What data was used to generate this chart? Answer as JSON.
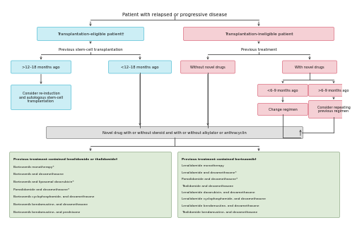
{
  "title": "Patient with relapsed or progressive disease",
  "bg_color": "#ffffff",
  "box_cyan_fill": "#cceef5",
  "box_cyan_edge": "#6bc8dc",
  "box_pink_fill": "#f5d0d5",
  "box_pink_edge": "#e08090",
  "box_green_fill": "#deebd8",
  "box_green_edge": "#a0b898",
  "box_gray_fill": "#e0e0e0",
  "box_gray_edge": "#909090",
  "arrow_color": "#444444",
  "text_color": "#111111",
  "title_text": "Patient with relapsed or progressive disease",
  "eligible_text": "Transplantation-eligible patient†",
  "ineligible_text": "Transplantation-ineligible patient",
  "prev_sct_text": "Previous stem-cell transplantation",
  "prev_tx_text": "Previous treatment",
  "gt12_text": ">12–18 months ago",
  "lt12_text": "<12–18 months ago",
  "without_novel_text": "Without novel drugs",
  "with_novel_text": "With novel drugs",
  "reinduction_text": "Consider re-induction\nand autologous stem-cell\ntransplantation",
  "lt6_text": "<6–9 months ago",
  "gt6_text": ">6–9 months ago",
  "change_text": "Change regimen",
  "repeat_text": "Consider repeating\nprevious regimen",
  "novel_text": "Novel drug with or without steroid and with or without alkylator or anthracyclin",
  "left_lines": [
    "Previous treatment contained lenalidomide or thalidomide†",
    "Bortezomib monotherapy*",
    "Bortezomib and dexamethasone",
    "Bortezomib and liposomal doxorubicin*",
    "Pomalidomide and dexamethasone*",
    "Bortezomib cyclophosphamide, and dexamethasone",
    "Bortezomib bendamustine, and dexamethasone",
    "Bortezomib bendamustine, and prednisone"
  ],
  "right_lines": [
    "Previous treatment contained bortezomib†",
    "Lenalidomide monotherapy",
    "Lenalidomide and dexamethasone*",
    "Pomalidomide and dexamethasone*",
    "Thalidomide and dexamethasone",
    "Lenalidomide doxorubicin, and dexamethasone",
    "Lenalidomide cyclophosphamide, and dexamethasone",
    "Lenalidomide bendamustine, and dexamethasone",
    "Thalidomide bendamustine, and dexamethasone"
  ]
}
